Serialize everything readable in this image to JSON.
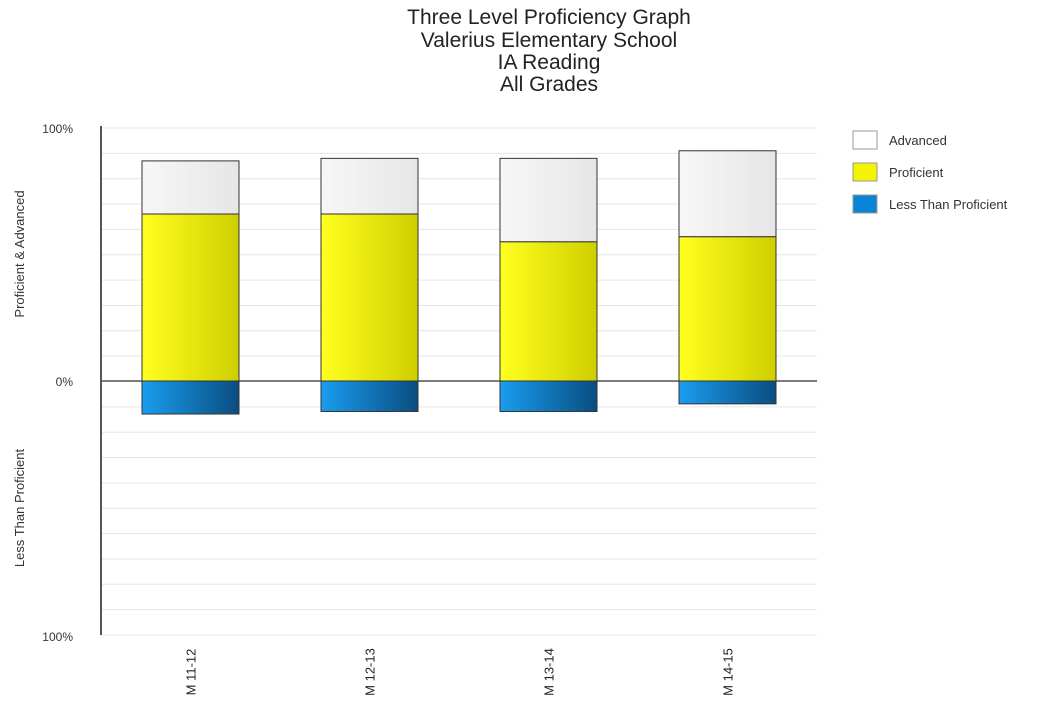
{
  "chart_data": {
    "type": "bar",
    "title": [
      "Three Level Proficiency Graph",
      "Valerius Elementary School",
      "IA Reading",
      "All Grades"
    ],
    "ylabel_upper": "Proficient & Advanced",
    "ylabel_lower": "Less Than Proficient",
    "y_ticks": {
      "top": "100%",
      "middle": "0%",
      "bottom": "100%"
    },
    "ylim": [
      -100,
      100
    ],
    "categories": [
      "M 11-12",
      "M 12-13",
      "M 13-14",
      "M 14-15"
    ],
    "series": [
      {
        "name": "Advanced",
        "values": [
          21,
          22,
          33,
          34
        ],
        "color": "#f4f4f4"
      },
      {
        "name": "Proficient",
        "values": [
          66,
          66,
          55,
          57
        ],
        "color": "#f2f200"
      },
      {
        "name": "Less Than Proficient",
        "values": [
          13,
          12,
          12,
          9
        ],
        "color": "#0a84d6"
      }
    ],
    "grid": true,
    "legend_position": "right"
  }
}
